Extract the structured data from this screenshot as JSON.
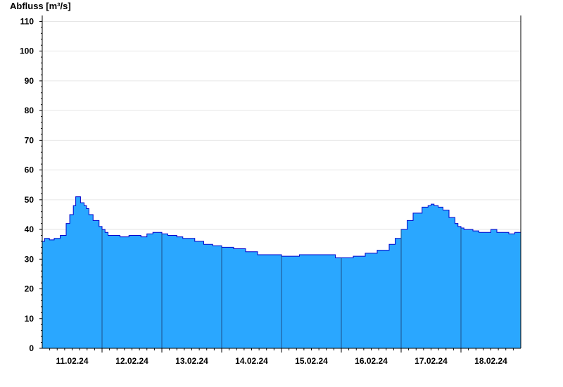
{
  "chart_data": {
    "type": "area",
    "ylabel": "Abfluss [m³/s]",
    "ylim": [
      0,
      112
    ],
    "yticks": [
      0,
      10,
      20,
      30,
      40,
      50,
      60,
      70,
      80,
      90,
      100,
      110
    ],
    "grid": true,
    "xlim": [
      0,
      8
    ],
    "day_boundaries": [
      1,
      2,
      3,
      4,
      5,
      6,
      7
    ],
    "x_tick_labels": [
      {
        "x": 0.5,
        "label": "11.02.24"
      },
      {
        "x": 1.5,
        "label": "12.02.24"
      },
      {
        "x": 2.5,
        "label": "13.02.24"
      },
      {
        "x": 3.5,
        "label": "14.02.24"
      },
      {
        "x": 4.5,
        "label": "15.02.24"
      },
      {
        "x": 5.5,
        "label": "16.02.24"
      },
      {
        "x": 6.5,
        "label": "17.02.24"
      },
      {
        "x": 7.5,
        "label": "18.02.24"
      }
    ],
    "series": [
      {
        "fill_color": "#2aa7ff",
        "line_color": "#0000cc",
        "x": [
          0,
          0.04,
          0.12,
          0.2,
          0.24,
          0.3,
          0.4,
          0.46,
          0.52,
          0.56,
          0.6,
          0.64,
          0.7,
          0.74,
          0.78,
          0.85,
          0.95,
          1.0,
          1.05,
          1.1,
          1.2,
          1.3,
          1.45,
          1.6,
          1.65,
          1.75,
          1.85,
          2.0,
          2.1,
          2.25,
          2.35,
          2.45,
          2.55,
          2.7,
          2.85,
          3.0,
          3.2,
          3.4,
          3.6,
          3.8,
          3.9,
          4.0,
          4.1,
          4.3,
          4.5,
          4.7,
          4.9,
          5.0,
          5.2,
          5.4,
          5.6,
          5.8,
          5.9,
          6.0,
          6.1,
          6.2,
          6.35,
          6.45,
          6.5,
          6.55,
          6.62,
          6.7,
          6.8,
          6.9,
          6.95,
          7.0,
          7.05,
          7.1,
          7.2,
          7.3,
          7.4,
          7.5,
          7.6,
          7.8,
          7.9,
          8.0
        ],
        "y": [
          36,
          37,
          36.5,
          37,
          37,
          38,
          42,
          45,
          48,
          51,
          51,
          49,
          48,
          47,
          45,
          43,
          41,
          40,
          39,
          38,
          38,
          37.5,
          38,
          38,
          37.5,
          38.5,
          39,
          38.5,
          38,
          37.5,
          37,
          37,
          36,
          35,
          34.5,
          34,
          33.5,
          32.5,
          31.5,
          31.5,
          31.5,
          31,
          31,
          31.5,
          31.5,
          31.5,
          30.5,
          30.5,
          31,
          32,
          33,
          35,
          37,
          40,
          43,
          45.5,
          47.5,
          48,
          48.5,
          48,
          47.5,
          46.5,
          44,
          42,
          41,
          40.5,
          40,
          40,
          39.5,
          39,
          39,
          40,
          39,
          38.5,
          39,
          40
        ]
      }
    ]
  }
}
